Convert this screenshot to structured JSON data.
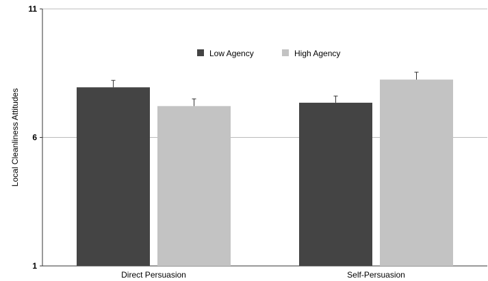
{
  "chart_data": {
    "type": "bar",
    "title": "",
    "xlabel": "",
    "ylabel": "Local Cleanliness Attitudes",
    "ylim": [
      1,
      11
    ],
    "yticks": [
      "1",
      "6",
      "11"
    ],
    "grid": true,
    "legend_position": "top-center",
    "categories": [
      "Direct Persuasion",
      "Self-Persuasion"
    ],
    "series": [
      {
        "name": "Low Agency",
        "color": "#444444",
        "values": [
          7.95,
          7.35
        ],
        "errors": [
          0.27,
          0.26
        ]
      },
      {
        "name": "High Agency",
        "color": "#c3c3c3",
        "values": [
          7.22,
          8.25
        ],
        "errors": [
          0.28,
          0.29
        ]
      }
    ]
  }
}
